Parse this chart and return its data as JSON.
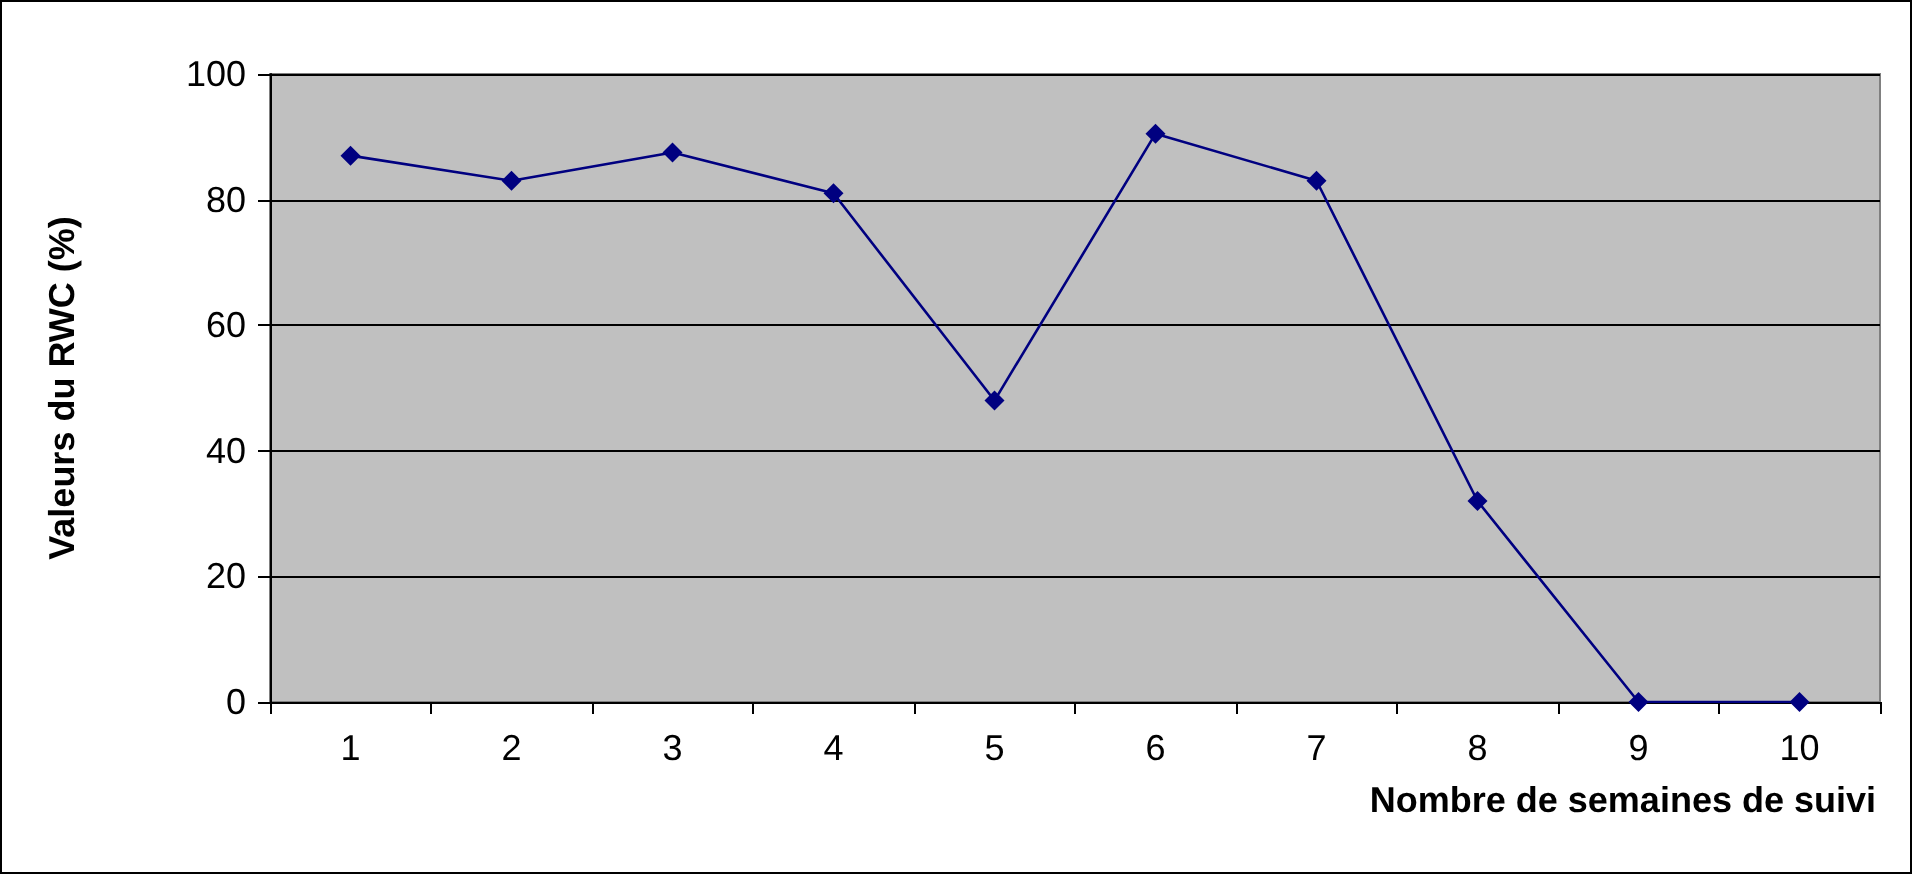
{
  "chart_data": {
    "type": "line",
    "xlabel": "Nombre de semaines de suivi",
    "ylabel": "Valeurs du RWC (%)",
    "categories": [
      "1",
      "2",
      "3",
      "4",
      "5",
      "6",
      "7",
      "8",
      "9",
      "10"
    ],
    "series": [
      {
        "color": "#000080",
        "values": [
          87,
          83,
          87.5,
          81,
          48,
          90.5,
          83,
          32,
          0,
          0
        ]
      }
    ],
    "ylim": [
      0,
      100
    ],
    "yticks": [
      0,
      20,
      40,
      60,
      80,
      100
    ],
    "grid": "y",
    "marker": "diamond",
    "line_style": "solid"
  }
}
